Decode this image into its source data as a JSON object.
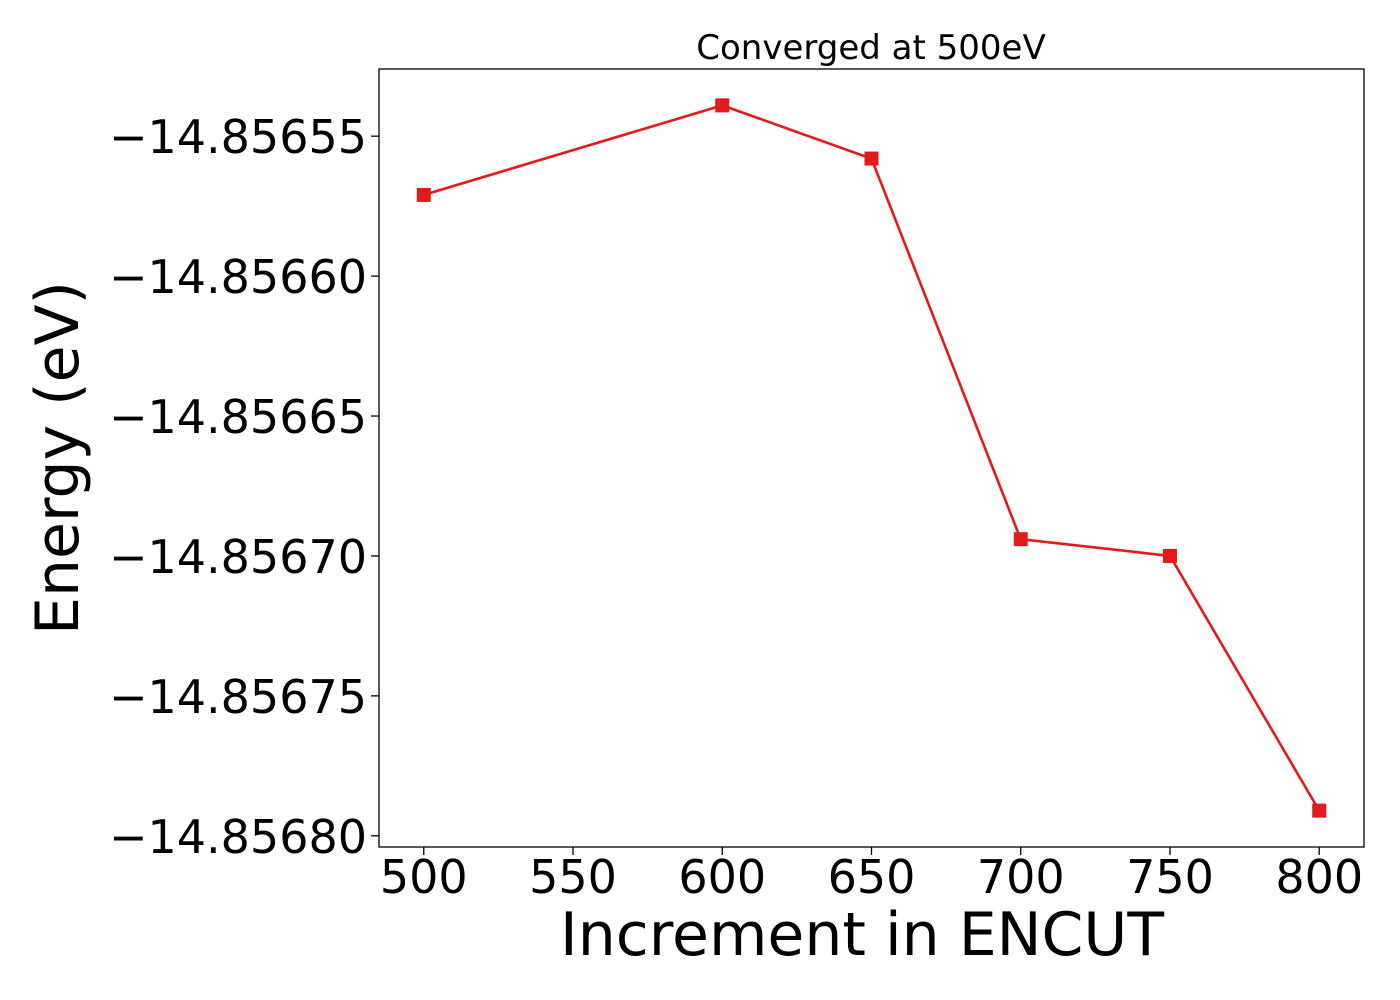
{
  "chart_data": {
    "type": "line",
    "title": "Converged at 500eV",
    "xlabel": "Increment in ENCUT",
    "ylabel": "Energy (eV)",
    "x": [
      500,
      600,
      650,
      700,
      750,
      800
    ],
    "series": [
      {
        "values": [
          -14.856571,
          -14.856539,
          -14.856558,
          -14.856694,
          -14.8567,
          -14.856791
        ],
        "color": "#e31a1c",
        "marker": "square"
      }
    ],
    "xticks": [
      500,
      550,
      600,
      650,
      700,
      750,
      800
    ],
    "xtick_labels": [
      "500",
      "550",
      "600",
      "650",
      "700",
      "750",
      "800"
    ],
    "yticks": [
      -14.85655,
      -14.8566,
      -14.85665,
      -14.8567,
      -14.85675,
      -14.8568
    ],
    "ytick_labels": [
      "−14.85655",
      "−14.85660",
      "−14.85665",
      "−14.85670",
      "−14.85675",
      "−14.85680"
    ],
    "xlim": [
      485,
      815
    ],
    "ylim": [
      -14.856804,
      -14.856526
    ],
    "grid": false,
    "legend": "none"
  }
}
